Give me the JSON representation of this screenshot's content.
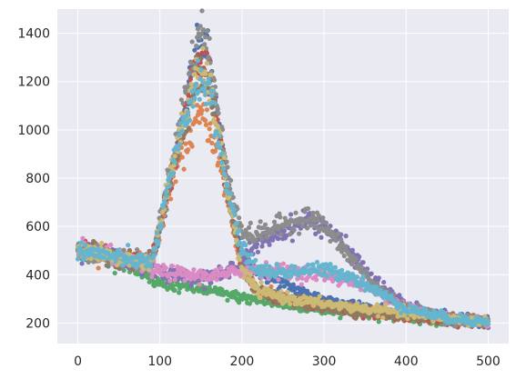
{
  "chart_data": {
    "type": "scatter",
    "title": "",
    "xlabel": "",
    "ylabel": "",
    "xlim": [
      -25,
      525
    ],
    "ylim": [
      115,
      1500
    ],
    "grid": true,
    "legend": "none",
    "x_ticks": [
      0,
      100,
      200,
      300,
      400,
      500
    ],
    "y_ticks": [
      200,
      400,
      600,
      800,
      1000,
      1200,
      1400
    ],
    "x_tick_labels": [
      "0",
      "100",
      "200",
      "300",
      "400",
      "500"
    ],
    "y_tick_labels": [
      "200",
      "400",
      "600",
      "800",
      "1000",
      "1200",
      "1400"
    ],
    "background": "#EAEAF2",
    "gridline_color": "#FFFFFF",
    "points_per_series": 500,
    "series": [
      {
        "color": "#4C72B0",
        "curve_x": [
          0,
          50,
          90,
          120,
          140,
          150,
          160,
          180,
          200,
          210,
          230,
          260,
          280,
          300,
          330,
          360,
          400,
          450,
          500
        ],
        "curve_y": [
          505,
          470,
          450,
          900,
          1250,
          1380,
          1300,
          800,
          470,
          440,
          390,
          350,
          320,
          300,
          280,
          260,
          240,
          225,
          210
        ]
      },
      {
        "color": "#DD8452",
        "curve_x": [
          0,
          50,
          90,
          120,
          140,
          150,
          160,
          180,
          200,
          220,
          260,
          300,
          350,
          400,
          450,
          500
        ],
        "curve_y": [
          500,
          470,
          450,
          850,
          1000,
          1060,
          1020,
          750,
          420,
          330,
          290,
          270,
          250,
          235,
          220,
          205
        ]
      },
      {
        "color": "#55A868",
        "curve_x": [
          0,
          50,
          90,
          150,
          200,
          250,
          300,
          350,
          400,
          450,
          500
        ],
        "curve_y": [
          505,
          470,
          370,
          340,
          305,
          275,
          255,
          240,
          225,
          212,
          200
        ]
      },
      {
        "color": "#C44E52",
        "curve_x": [
          0,
          50,
          90,
          120,
          140,
          150,
          160,
          180,
          200,
          220,
          260,
          300,
          350,
          400,
          450,
          500
        ],
        "curve_y": [
          505,
          470,
          450,
          900,
          1200,
          1300,
          1240,
          800,
          430,
          330,
          290,
          265,
          245,
          230,
          215,
          205
        ]
      },
      {
        "color": "#8172B3",
        "curve_x": [
          0,
          50,
          90,
          120,
          150,
          180,
          200,
          230,
          260,
          280,
          300,
          330,
          360,
          400,
          450,
          500
        ],
        "curve_y": [
          505,
          470,
          420,
          400,
          390,
          400,
          470,
          550,
          600,
          630,
          600,
          500,
          380,
          270,
          220,
          205
        ]
      },
      {
        "color": "#937860",
        "curve_x": [
          0,
          50,
          90,
          120,
          140,
          150,
          160,
          180,
          200,
          220,
          260,
          300,
          350,
          400,
          450,
          500
        ],
        "curve_y": [
          505,
          470,
          450,
          880,
          1150,
          1220,
          1180,
          780,
          430,
          330,
          290,
          265,
          245,
          230,
          215,
          205
        ]
      },
      {
        "color": "#DA8BC3",
        "curve_x": [
          0,
          50,
          90,
          120,
          150,
          180,
          200,
          230,
          260,
          300,
          330,
          360,
          400,
          450,
          500
        ],
        "curve_y": [
          505,
          470,
          420,
          405,
          395,
          400,
          420,
          420,
          410,
          400,
          380,
          340,
          270,
          225,
          205
        ]
      },
      {
        "color": "#8C8C8C",
        "curve_x": [
          0,
          50,
          90,
          120,
          140,
          150,
          160,
          180,
          200,
          210,
          230,
          260,
          280,
          300,
          330,
          360,
          400,
          450,
          500
        ],
        "curve_y": [
          505,
          470,
          450,
          960,
          1300,
          1430,
          1320,
          860,
          580,
          560,
          580,
          620,
          640,
          600,
          480,
          360,
          260,
          220,
          205
        ]
      },
      {
        "color": "#CCB974",
        "curve_x": [
          0,
          50,
          90,
          120,
          140,
          150,
          160,
          180,
          200,
          220,
          260,
          300,
          350,
          400,
          450,
          500
        ],
        "curve_y": [
          505,
          470,
          450,
          920,
          1180,
          1240,
          1200,
          800,
          420,
          330,
          300,
          280,
          260,
          240,
          220,
          205
        ]
      },
      {
        "color": "#64B5CD",
        "curve_x": [
          0,
          50,
          90,
          120,
          140,
          150,
          160,
          180,
          200,
          220,
          250,
          280,
          300,
          330,
          360,
          400,
          450,
          500
        ],
        "curve_y": [
          505,
          470,
          450,
          900,
          1150,
          1210,
          1170,
          800,
          500,
          420,
          410,
          420,
          420,
          400,
          340,
          260,
          220,
          205
        ]
      }
    ]
  }
}
